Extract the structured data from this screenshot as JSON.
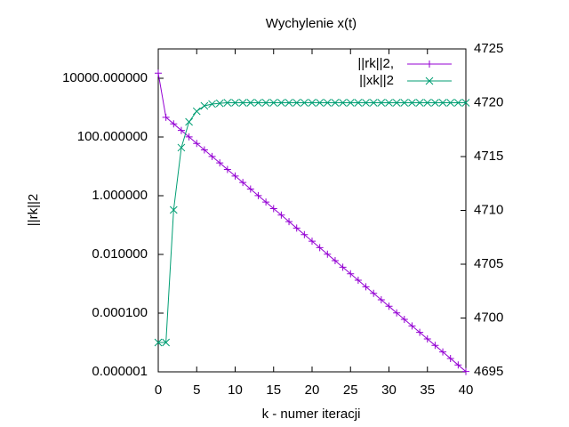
{
  "chart_data": {
    "type": "line",
    "title": "Wychylenie x(t)",
    "x_label": "k - numer iteracji",
    "y_label": "||rk||2",
    "y_label_color": "#e41a1c",
    "ylog": true,
    "legend": "top-right",
    "x": [
      0,
      1,
      2,
      3,
      4,
      5,
      6,
      7,
      8,
      9,
      10,
      11,
      12,
      13,
      14,
      15,
      16,
      17,
      18,
      19,
      20,
      21,
      22,
      23,
      24,
      25,
      26,
      27,
      28,
      29,
      30,
      31,
      32,
      33,
      34,
      35,
      36,
      37,
      38,
      39,
      40
    ],
    "xlim": [
      0,
      40
    ],
    "xticks": [
      0,
      5,
      10,
      15,
      20,
      25,
      30,
      35,
      40
    ],
    "ylim": [
      1e-06,
      100000
    ],
    "yticks": [
      {
        "value": 1e-06,
        "label": "0.000001"
      },
      {
        "value": 0.0001,
        "label": "0.000100"
      },
      {
        "value": 0.01,
        "label": "0.010000"
      },
      {
        "value": 1,
        "label": "1.000000"
      },
      {
        "value": 100,
        "label": "100.000000"
      },
      {
        "value": 10000,
        "label": "10000.000000"
      }
    ],
    "y2lim": [
      4695,
      4725
    ],
    "y2ticks": [
      4695,
      4700,
      4705,
      4710,
      4715,
      4720,
      4725
    ],
    "series": [
      {
        "name": "||rk||2,",
        "color": "#9400d3",
        "marker": "plus",
        "values": [
          15000,
          468,
          281,
          168,
          101,
          60.5,
          36.3,
          21.8,
          13.1,
          7.83,
          4.7,
          2.82,
          1.69,
          1.01,
          0.608,
          0.365,
          0.219,
          0.131,
          0.0787,
          0.0472,
          0.0283,
          0.017,
          0.0102,
          0.00611,
          0.00366,
          0.0022,
          0.00132,
          0.000791,
          0.000474,
          0.000284,
          0.000171,
          0.000102,
          6.14e-05,
          3.68e-05,
          2.21e-05,
          1.32e-05,
          7.94e-06,
          4.76e-06,
          2.86e-06,
          1.71e-06,
          1.03e-06
        ]
      },
      {
        "name": "||xk||2",
        "color": "#009e73",
        "marker": "cross",
        "axis": "y2",
        "values": [
          4697.73,
          4697.73,
          4710.04,
          4715.83,
          4718.22,
          4719.21,
          4719.71,
          4719.88,
          4719.95,
          4720,
          4720,
          4720,
          4720,
          4720,
          4720,
          4720,
          4720,
          4720,
          4720,
          4720,
          4720,
          4720,
          4720,
          4720,
          4720,
          4720,
          4720,
          4720,
          4720,
          4720,
          4720,
          4720,
          4720,
          4720,
          4720,
          4720,
          4720,
          4720,
          4720,
          4720,
          4720
        ]
      }
    ]
  }
}
